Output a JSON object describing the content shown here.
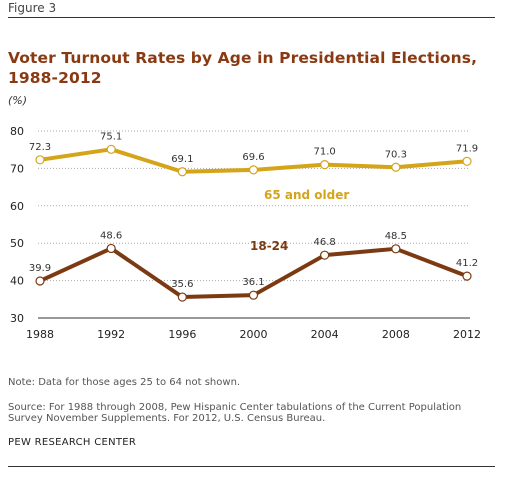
{
  "figure_label": "Figure 3",
  "title": "Voter Turnout Rates by Age in Presidential Elections, 1988-2012",
  "unit_label": "(%)",
  "note": "Note: Data for those ages 25 to 64 not shown.",
  "source": "Source:  For 1988 through 2008, Pew Hispanic Center tabulations of the Current Population Survey November Supplements. For 2012, U.S. Census Bureau.",
  "credit": "PEW RESEARCH CENTER",
  "colors": {
    "older": "#d4a419",
    "young": "#7b3a12",
    "grid": "#aaaaaa",
    "axis": "#333333"
  },
  "chart_data": {
    "type": "line",
    "categories": [
      "1988",
      "1992",
      "1996",
      "2000",
      "2004",
      "2008",
      "2012"
    ],
    "ylim": [
      30,
      80
    ],
    "yticks": [
      30,
      40,
      50,
      60,
      70,
      80
    ],
    "grid": true,
    "series": [
      {
        "name": "65 and older",
        "color": "#d4a419",
        "values": [
          72.3,
          75.1,
          69.1,
          69.6,
          71.0,
          70.3,
          71.9
        ]
      },
      {
        "name": "18-24",
        "color": "#7b3a12",
        "values": [
          39.9,
          48.6,
          35.6,
          36.1,
          46.8,
          48.5,
          41.2
        ]
      }
    ]
  }
}
